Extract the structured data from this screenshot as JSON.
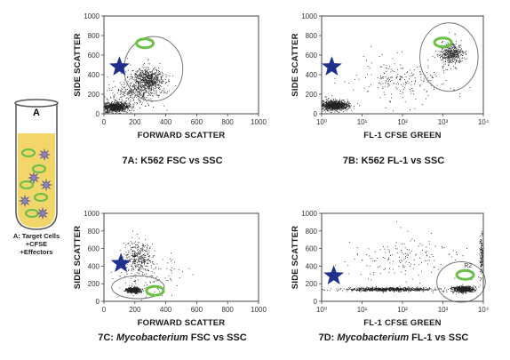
{
  "tube": {
    "letter": "A",
    "caption_lines": [
      "A: Target Cells",
      "+CFSE",
      "+Effectors"
    ]
  },
  "colors": {
    "star": "#1f2f8c",
    "cell_ring": "#6cc04a",
    "tube_fill": "#f3d66a",
    "dots": "#222222",
    "gate": "#777777"
  },
  "chart_data": [
    {
      "id": "7A",
      "type": "scatter",
      "caption": "7A: K562 FSC vs SSC",
      "xlabel": "FORWARD SCATTER",
      "ylabel": "SIDE SCATTER",
      "xscale": "linear",
      "xlim": [
        0,
        1000
      ],
      "ylim": [
        0,
        1000
      ],
      "xticks": [
        "0",
        "200",
        "400",
        "600",
        "800",
        "1000"
      ],
      "yticks": [
        "0",
        "200",
        "400",
        "600",
        "800",
        "1000"
      ],
      "populations": [
        {
          "center": [
            70,
            70
          ],
          "spread": [
            90,
            60
          ],
          "n": 900
        },
        {
          "center": [
            280,
            350
          ],
          "spread": [
            110,
            140
          ],
          "n": 650
        },
        {
          "center": [
            200,
            220
          ],
          "spread": [
            160,
            120
          ],
          "n": 300
        }
      ],
      "gate": {
        "type": "ellipse",
        "center": [
          320,
          460
        ],
        "radius": [
          190,
          330
        ],
        "label": ""
      },
      "star": [
        100,
        480
      ],
      "cell": [
        265,
        720
      ]
    },
    {
      "id": "7B",
      "type": "scatter",
      "caption": "7B: K562 FL-1 vs SSC",
      "xlabel": "FL-1 CFSE GREEN",
      "ylabel": "SIDE SCATTER",
      "xscale": "log",
      "xlim": [
        1,
        10000
      ],
      "ylim": [
        0,
        1000
      ],
      "xticks": [
        "10⁰",
        "10¹",
        "10²",
        "10³",
        "10⁴"
      ],
      "xtick_values": [
        1,
        10,
        100,
        1000,
        10000
      ],
      "yticks": [
        "0",
        "200",
        "400",
        "600",
        "800",
        "1000"
      ],
      "populations": [
        {
          "center": [
            0.3,
            90
          ],
          "spread": [
            0.35,
            60
          ],
          "n": 900
        },
        {
          "center": [
            3.2,
            620
          ],
          "spread": [
            0.28,
            130
          ],
          "n": 450
        },
        {
          "center": [
            2.0,
            350
          ],
          "spread": [
            1.2,
            250
          ],
          "n": 220
        }
      ],
      "gate": {
        "type": "ellipse",
        "center": [
          3.15,
          580
        ],
        "radius": [
          0.72,
          350
        ],
        "label": ""
      },
      "star": [
        0.25,
        480
      ],
      "cell": [
        3.0,
        730
      ]
    },
    {
      "id": "7C",
      "type": "scatter",
      "caption_prefix": "7C: ",
      "caption_italic": "Mycobacterium",
      "caption_suffix": " FSC vs SSC",
      "xlabel": "FORWARD SCATTER",
      "ylabel": "SIDE SCATTER",
      "xscale": "linear",
      "xlim": [
        0,
        1000
      ],
      "ylim": [
        0,
        1000
      ],
      "xticks": [
        "0",
        "200",
        "400",
        "600",
        "800",
        "1000"
      ],
      "yticks": [
        "0",
        "200",
        "400",
        "600",
        "800",
        "1000"
      ],
      "populations": [
        {
          "center": [
            190,
            130
          ],
          "spread": [
            45,
            35
          ],
          "n": 500
        },
        {
          "center": [
            220,
            500
          ],
          "spread": [
            90,
            220
          ],
          "n": 320
        },
        {
          "center": [
            300,
            300
          ],
          "spread": [
            200,
            250
          ],
          "n": 120
        }
      ],
      "gate": {
        "type": "ellipse",
        "center": [
          220,
          160
        ],
        "radius": [
          170,
          130
        ],
        "label": ""
      },
      "star": [
        110,
        430
      ],
      "cell": [
        330,
        120
      ]
    },
    {
      "id": "7D",
      "type": "scatter",
      "caption_prefix": "7D: ",
      "caption_italic": "Mycobacterium",
      "caption_suffix": " FL-1 vs SSC",
      "xlabel": "FL-1 CFSE GREEN",
      "ylabel": "SIDE SCATTER",
      "xscale": "log",
      "xlim": [
        1,
        10000
      ],
      "ylim": [
        0,
        1000
      ],
      "xticks": [
        "10⁰",
        "10¹",
        "10²",
        "10³",
        "10⁴"
      ],
      "xtick_values": [
        1,
        10,
        100,
        1000,
        10000
      ],
      "yticks": [
        "0",
        "200",
        "400",
        "600",
        "800",
        "1000"
      ],
      "populations": [
        {
          "center": [
            1.7,
            140
          ],
          "spread": [
            1.1,
            25
          ],
          "n": 750
        },
        {
          "center": [
            3.5,
            140
          ],
          "spread": [
            0.25,
            40
          ],
          "n": 700
        },
        {
          "center": [
            3.95,
            500
          ],
          "spread": [
            0.05,
            300
          ],
          "n": 150
        },
        {
          "center": [
            2.0,
            500
          ],
          "spread": [
            1.5,
            280
          ],
          "n": 160
        }
      ],
      "gate": {
        "type": "ellipse",
        "center": [
          3.45,
          220
        ],
        "radius": [
          0.6,
          230
        ],
        "label": "R2"
      },
      "star": [
        0.3,
        290
      ],
      "cell": [
        3.55,
        300
      ]
    }
  ]
}
